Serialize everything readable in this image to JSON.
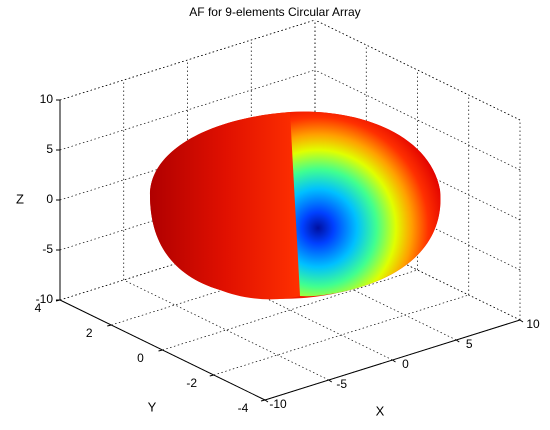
{
  "chart_data": {
    "type": "surface3d",
    "title": "AF for 9-elements Circular Array",
    "xlabel": "X",
    "ylabel": "Y",
    "zlabel": "Z",
    "xlim": [
      -10,
      10
    ],
    "ylim": [
      -4,
      4
    ],
    "zlim": [
      -10,
      10
    ],
    "xticks": [
      -10,
      -5,
      0,
      5,
      10
    ],
    "yticks": [
      -4,
      -2,
      0,
      2,
      4
    ],
    "zticks": [
      -10,
      -5,
      0,
      5,
      10
    ],
    "grid": true
  }
}
